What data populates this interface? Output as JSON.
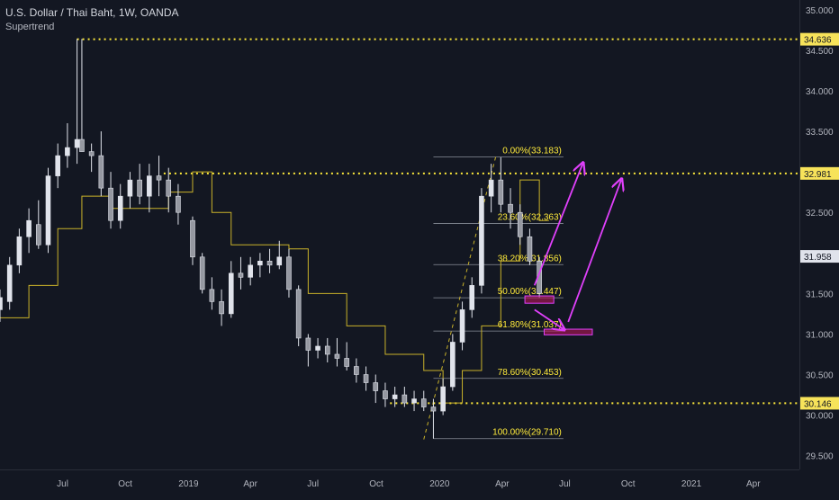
{
  "legend": {
    "symbol_line": "U.S. Dollar / Thai Baht, 1W, OANDA",
    "indicator": "Supertrend"
  },
  "colors": {
    "background": "#131722",
    "candle_body": "#e0e3eb",
    "supertrend": "#c9b22a",
    "level_line": "#ffeb3b",
    "fib_line": "#8a8f9a",
    "fib_label": "#ffeb3b",
    "arrow": "#e040fb",
    "zone_fill": "#c2185b",
    "zone_border": "#e040fb"
  },
  "chart_data": {
    "type": "candlestick",
    "title": "U.S. Dollar / Thai Baht, 1W, OANDA",
    "ylim": [
      29.33,
      35.12
    ],
    "y_ticks": [
      "35.000",
      "34.500",
      "34.000",
      "33.500",
      "33.000",
      "32.500",
      "32.000",
      "31.500",
      "31.000",
      "30.500",
      "30.000",
      "29.500"
    ],
    "x_ticks": [
      "Jul",
      "Oct",
      "2019",
      "Apr",
      "Jul",
      "Oct",
      "2020",
      "Apr",
      "Jul",
      "Oct",
      "2021",
      "Apr"
    ],
    "x_start": "2018-04-02",
    "x_end": "2021-06-07",
    "horizontal_levels": [
      {
        "value": 34.636,
        "label": "34.636"
      },
      {
        "value": 32.981,
        "label": "32.981"
      },
      {
        "value": 30.146,
        "label": "30.146"
      }
    ],
    "current_price": {
      "value": 31.958,
      "label": "31.958"
    },
    "fib_retracement": {
      "start_date": "2019-12-23",
      "end_date": "2020-06-29",
      "levels": [
        {
          "value": 33.183,
          "label": "0.00%(33.183)"
        },
        {
          "value": 32.363,
          "label": "23.60%(32.363)"
        },
        {
          "value": 31.856,
          "label": "38.20%(31.856)"
        },
        {
          "value": 31.447,
          "label": "50.00%(31.447)"
        },
        {
          "value": 31.037,
          "label": "61.80%(31.037)"
        },
        {
          "value": 30.453,
          "label": "78.60%(30.453)"
        },
        {
          "value": 29.71,
          "label": "100.00%(29.710)"
        }
      ]
    },
    "trend_line": {
      "from": {
        "date": "2019-12-09",
        "value": 29.7
      },
      "to": {
        "date": "2020-03-23",
        "value": 33.2
      }
    },
    "zones": [
      {
        "date_from": "2020-05-04",
        "date_to": "2020-06-15",
        "low": 31.38,
        "high": 31.47
      },
      {
        "date_from": "2020-06-01",
        "date_to": "2020-08-10",
        "low": 30.99,
        "high": 31.06
      }
    ],
    "arrows": [
      {
        "from": {
          "date": "2020-05-18",
          "value": 31.6
        },
        "to": {
          "date": "2020-07-27",
          "value": 33.1
        }
      },
      {
        "from": {
          "date": "2020-05-18",
          "value": 31.3
        },
        "to": {
          "date": "2020-06-29",
          "value": 31.06
        }
      },
      {
        "from": {
          "date": "2020-07-06",
          "value": 31.15
        },
        "to": {
          "date": "2020-09-21",
          "value": 32.9
        }
      }
    ],
    "candles": [
      {
        "date": "2018-04-02",
        "o": 31.3,
        "h": 31.55,
        "l": 31.15,
        "c": 31.45
      },
      {
        "date": "2018-04-16",
        "o": 31.4,
        "h": 31.95,
        "l": 31.3,
        "c": 31.85
      },
      {
        "date": "2018-04-30",
        "o": 31.85,
        "h": 32.3,
        "l": 31.75,
        "c": 32.2
      },
      {
        "date": "2018-05-14",
        "o": 32.2,
        "h": 32.55,
        "l": 32.0,
        "c": 32.4
      },
      {
        "date": "2018-05-28",
        "o": 32.35,
        "h": 32.65,
        "l": 32.05,
        "c": 32.1
      },
      {
        "date": "2018-06-11",
        "o": 32.1,
        "h": 33.05,
        "l": 32.0,
        "c": 32.95
      },
      {
        "date": "2018-06-25",
        "o": 32.95,
        "h": 33.35,
        "l": 32.8,
        "c": 33.2
      },
      {
        "date": "2018-07-09",
        "o": 33.2,
        "h": 33.6,
        "l": 33.05,
        "c": 33.3
      },
      {
        "date": "2018-07-23",
        "o": 33.3,
        "h": 34.64,
        "l": 33.1,
        "c": 33.4
      },
      {
        "date": "2018-07-30",
        "o": 33.4,
        "h": 34.64,
        "l": 33.25,
        "c": 33.25
      },
      {
        "date": "2018-08-13",
        "o": 33.25,
        "h": 33.35,
        "l": 33.0,
        "c": 33.2
      },
      {
        "date": "2018-08-27",
        "o": 33.2,
        "h": 33.5,
        "l": 32.7,
        "c": 32.8
      },
      {
        "date": "2018-09-10",
        "o": 32.8,
        "h": 33.0,
        "l": 32.3,
        "c": 32.4
      },
      {
        "date": "2018-09-24",
        "o": 32.4,
        "h": 32.85,
        "l": 32.3,
        "c": 32.7
      },
      {
        "date": "2018-10-08",
        "o": 32.7,
        "h": 33.0,
        "l": 32.55,
        "c": 32.9
      },
      {
        "date": "2018-10-22",
        "o": 32.9,
        "h": 33.1,
        "l": 32.6,
        "c": 32.7
      },
      {
        "date": "2018-11-05",
        "o": 32.7,
        "h": 33.1,
        "l": 32.5,
        "c": 32.95
      },
      {
        "date": "2018-11-19",
        "o": 32.95,
        "h": 33.2,
        "l": 32.7,
        "c": 32.9
      },
      {
        "date": "2018-12-03",
        "o": 32.9,
        "h": 33.05,
        "l": 32.5,
        "c": 32.7
      },
      {
        "date": "2018-12-17",
        "o": 32.7,
        "h": 32.85,
        "l": 32.35,
        "c": 32.5
      },
      {
        "date": "2019-01-07",
        "o": 32.4,
        "h": 32.45,
        "l": 31.85,
        "c": 31.95
      },
      {
        "date": "2019-01-21",
        "o": 31.95,
        "h": 32.0,
        "l": 31.5,
        "c": 31.55
      },
      {
        "date": "2019-02-04",
        "o": 31.55,
        "h": 31.7,
        "l": 31.3,
        "c": 31.4
      },
      {
        "date": "2019-02-18",
        "o": 31.4,
        "h": 31.55,
        "l": 31.1,
        "c": 31.25
      },
      {
        "date": "2019-03-04",
        "o": 31.25,
        "h": 31.9,
        "l": 31.2,
        "c": 31.75
      },
      {
        "date": "2019-03-18",
        "o": 31.75,
        "h": 31.95,
        "l": 31.55,
        "c": 31.7
      },
      {
        "date": "2019-04-01",
        "o": 31.7,
        "h": 31.95,
        "l": 31.6,
        "c": 31.85
      },
      {
        "date": "2019-04-15",
        "o": 31.85,
        "h": 32.0,
        "l": 31.7,
        "c": 31.9
      },
      {
        "date": "2019-04-29",
        "o": 31.9,
        "h": 32.05,
        "l": 31.75,
        "c": 31.85
      },
      {
        "date": "2019-05-13",
        "o": 31.85,
        "h": 32.15,
        "l": 31.8,
        "c": 31.95
      },
      {
        "date": "2019-05-27",
        "o": 31.95,
        "h": 32.05,
        "l": 31.45,
        "c": 31.55
      },
      {
        "date": "2019-06-10",
        "o": 31.55,
        "h": 31.6,
        "l": 30.85,
        "c": 30.95
      },
      {
        "date": "2019-06-24",
        "o": 30.95,
        "h": 31.0,
        "l": 30.6,
        "c": 30.8
      },
      {
        "date": "2019-07-08",
        "o": 30.8,
        "h": 30.95,
        "l": 30.7,
        "c": 30.85
      },
      {
        "date": "2019-07-22",
        "o": 30.85,
        "h": 30.95,
        "l": 30.65,
        "c": 30.75
      },
      {
        "date": "2019-08-05",
        "o": 30.75,
        "h": 30.95,
        "l": 30.6,
        "c": 30.7
      },
      {
        "date": "2019-08-19",
        "o": 30.7,
        "h": 30.9,
        "l": 30.55,
        "c": 30.6
      },
      {
        "date": "2019-09-02",
        "o": 30.6,
        "h": 30.7,
        "l": 30.4,
        "c": 30.5
      },
      {
        "date": "2019-09-16",
        "o": 30.5,
        "h": 30.6,
        "l": 30.3,
        "c": 30.4
      },
      {
        "date": "2019-09-30",
        "o": 30.4,
        "h": 30.5,
        "l": 30.15,
        "c": 30.3
      },
      {
        "date": "2019-10-14",
        "o": 30.3,
        "h": 30.4,
        "l": 30.1,
        "c": 30.2
      },
      {
        "date": "2019-10-28",
        "o": 30.2,
        "h": 30.35,
        "l": 30.1,
        "c": 30.25
      },
      {
        "date": "2019-11-11",
        "o": 30.25,
        "h": 30.35,
        "l": 30.1,
        "c": 30.15
      },
      {
        "date": "2019-11-25",
        "o": 30.15,
        "h": 30.3,
        "l": 30.05,
        "c": 30.2
      },
      {
        "date": "2019-12-09",
        "o": 30.2,
        "h": 30.3,
        "l": 30.05,
        "c": 30.1
      },
      {
        "date": "2019-12-23",
        "o": 30.1,
        "h": 30.2,
        "l": 29.71,
        "c": 30.05
      },
      {
        "date": "2020-01-06",
        "o": 30.05,
        "h": 30.45,
        "l": 30.0,
        "c": 30.35
      },
      {
        "date": "2020-01-20",
        "o": 30.35,
        "h": 31.0,
        "l": 30.3,
        "c": 30.9
      },
      {
        "date": "2020-02-03",
        "o": 30.9,
        "h": 31.4,
        "l": 30.8,
        "c": 31.3
      },
      {
        "date": "2020-02-17",
        "o": 31.3,
        "h": 31.7,
        "l": 31.2,
        "c": 31.6
      },
      {
        "date": "2020-03-02",
        "o": 31.6,
        "h": 32.8,
        "l": 31.5,
        "c": 32.7
      },
      {
        "date": "2020-03-16",
        "o": 32.7,
        "h": 33.1,
        "l": 32.5,
        "c": 32.9
      },
      {
        "date": "2020-03-30",
        "o": 32.9,
        "h": 33.18,
        "l": 32.5,
        "c": 32.6
      },
      {
        "date": "2020-04-13",
        "o": 32.6,
        "h": 32.8,
        "l": 32.3,
        "c": 32.5
      },
      {
        "date": "2020-04-27",
        "o": 32.5,
        "h": 32.6,
        "l": 32.1,
        "c": 32.2
      },
      {
        "date": "2020-05-11",
        "o": 32.2,
        "h": 32.3,
        "l": 31.85,
        "c": 31.9
      },
      {
        "date": "2020-05-25",
        "o": 31.9,
        "h": 31.95,
        "l": 31.45,
        "c": 31.5
      }
    ],
    "supertrend": [
      {
        "date": "2018-04-02",
        "value": 31.2
      },
      {
        "date": "2018-05-14",
        "value": 31.6
      },
      {
        "date": "2018-06-25",
        "value": 32.3
      },
      {
        "date": "2018-07-30",
        "value": 32.7
      },
      {
        "date": "2018-09-10",
        "value": 32.55
      },
      {
        "date": "2018-10-22",
        "value": 32.55
      },
      {
        "date": "2018-12-03",
        "value": 32.75
      },
      {
        "date": "2019-01-07",
        "value": 33.0
      },
      {
        "date": "2019-02-04",
        "value": 32.5
      },
      {
        "date": "2019-03-04",
        "value": 32.1
      },
      {
        "date": "2019-04-29",
        "value": 32.1
      },
      {
        "date": "2019-05-27",
        "value": 32.05
      },
      {
        "date": "2019-06-24",
        "value": 31.5
      },
      {
        "date": "2019-08-19",
        "value": 31.1
      },
      {
        "date": "2019-10-14",
        "value": 30.75
      },
      {
        "date": "2019-12-09",
        "value": 30.55
      },
      {
        "date": "2020-01-06",
        "value": 30.15
      },
      {
        "date": "2020-02-03",
        "value": 30.55
      },
      {
        "date": "2020-03-02",
        "value": 31.1
      },
      {
        "date": "2020-03-30",
        "value": 31.9
      },
      {
        "date": "2020-04-27",
        "value": 32.9
      },
      {
        "date": "2020-05-25",
        "value": 32.4
      }
    ]
  }
}
